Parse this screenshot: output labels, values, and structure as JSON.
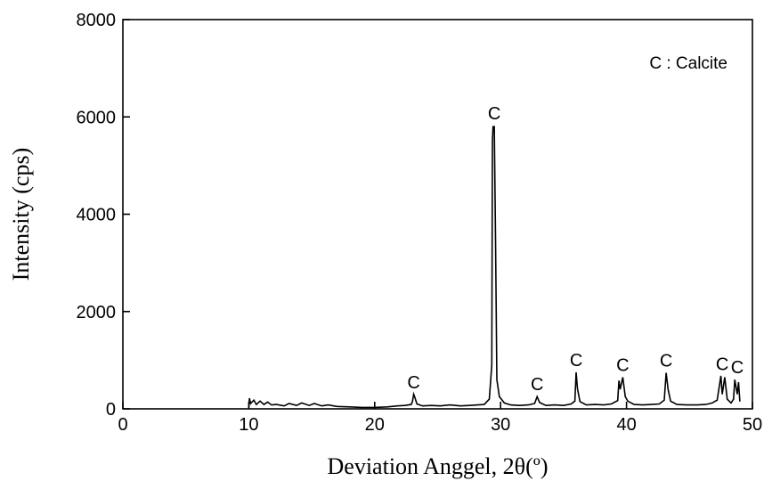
{
  "chart_data": {
    "type": "line",
    "xlabel": "Deviation Anggel, 2θ(º)",
    "ylabel": "Intensity (cps)",
    "annotation_legend": "C : Calcite",
    "xlim": [
      0,
      50
    ],
    "ylim": [
      0,
      8000
    ],
    "xticks": [
      0,
      10,
      20,
      30,
      40,
      50
    ],
    "yticks": [
      0,
      2000,
      4000,
      6000,
      8000
    ],
    "grid": false,
    "series": [
      {
        "values": [
          [
            10.0,
            0
          ],
          [
            10.05,
            220
          ],
          [
            10.15,
            110
          ],
          [
            10.4,
            180
          ],
          [
            10.6,
            90
          ],
          [
            10.9,
            160
          ],
          [
            11.2,
            90
          ],
          [
            11.5,
            140
          ],
          [
            11.8,
            80
          ],
          [
            12.2,
            90
          ],
          [
            12.8,
            60
          ],
          [
            13.2,
            110
          ],
          [
            13.8,
            70
          ],
          [
            14.2,
            120
          ],
          [
            14.8,
            70
          ],
          [
            15.2,
            110
          ],
          [
            15.8,
            60
          ],
          [
            16.3,
            80
          ],
          [
            17.0,
            50
          ],
          [
            18.0,
            40
          ],
          [
            19.0,
            30
          ],
          [
            20.0,
            30
          ],
          [
            21.0,
            40
          ],
          [
            21.8,
            60
          ],
          [
            22.4,
            70
          ],
          [
            22.9,
            90
          ],
          [
            23.0,
            150
          ],
          [
            23.1,
            300
          ],
          [
            23.2,
            230
          ],
          [
            23.35,
            100
          ],
          [
            23.8,
            60
          ],
          [
            24.5,
            70
          ],
          [
            25.2,
            60
          ],
          [
            26.0,
            80
          ],
          [
            26.8,
            60
          ],
          [
            27.5,
            70
          ],
          [
            28.2,
            80
          ],
          [
            28.7,
            90
          ],
          [
            29.1,
            200
          ],
          [
            29.3,
            900
          ],
          [
            29.35,
            5500
          ],
          [
            29.4,
            5800
          ],
          [
            29.5,
            5800
          ],
          [
            29.6,
            3500
          ],
          [
            29.7,
            600
          ],
          [
            29.9,
            250
          ],
          [
            30.3,
            120
          ],
          [
            30.8,
            80
          ],
          [
            31.5,
            70
          ],
          [
            32.2,
            80
          ],
          [
            32.7,
            110
          ],
          [
            32.9,
            250
          ],
          [
            33.1,
            130
          ],
          [
            33.6,
            70
          ],
          [
            34.3,
            80
          ],
          [
            35.0,
            70
          ],
          [
            35.6,
            100
          ],
          [
            35.9,
            160
          ],
          [
            36.0,
            750
          ],
          [
            36.1,
            420
          ],
          [
            36.3,
            150
          ],
          [
            36.8,
            80
          ],
          [
            37.5,
            90
          ],
          [
            38.2,
            80
          ],
          [
            38.8,
            100
          ],
          [
            39.3,
            170
          ],
          [
            39.4,
            580
          ],
          [
            39.5,
            400
          ],
          [
            39.7,
            650
          ],
          [
            39.9,
            250
          ],
          [
            40.1,
            160
          ],
          [
            40.6,
            90
          ],
          [
            41.3,
            80
          ],
          [
            42.0,
            90
          ],
          [
            42.6,
            100
          ],
          [
            43.0,
            180
          ],
          [
            43.15,
            740
          ],
          [
            43.3,
            400
          ],
          [
            43.5,
            160
          ],
          [
            44.0,
            90
          ],
          [
            44.8,
            80
          ],
          [
            45.6,
            80
          ],
          [
            46.3,
            90
          ],
          [
            46.8,
            120
          ],
          [
            47.2,
            180
          ],
          [
            47.5,
            680
          ],
          [
            47.6,
            300
          ],
          [
            47.8,
            650
          ],
          [
            48.0,
            200
          ],
          [
            48.3,
            120
          ],
          [
            48.5,
            200
          ],
          [
            48.6,
            600
          ],
          [
            48.8,
            300
          ],
          [
            48.9,
            550
          ],
          [
            49.0,
            150
          ]
        ]
      }
    ],
    "annotations": [
      {
        "text": "C",
        "x": 23.1,
        "y": 420
      },
      {
        "text": "C",
        "x": 29.5,
        "y": 5950
      },
      {
        "text": "C",
        "x": 32.9,
        "y": 380
      },
      {
        "text": "C",
        "x": 36.0,
        "y": 880
      },
      {
        "text": "C",
        "x": 39.7,
        "y": 780
      },
      {
        "text": "C",
        "x": 43.15,
        "y": 870
      },
      {
        "text": "C",
        "x": 47.6,
        "y": 800
      },
      {
        "text": "C",
        "x": 48.8,
        "y": 730
      }
    ]
  }
}
